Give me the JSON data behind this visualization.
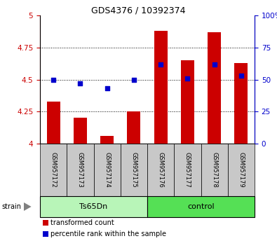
{
  "title": "GDS4376 / 10392374",
  "samples": [
    "GSM957172",
    "GSM957173",
    "GSM957174",
    "GSM957175",
    "GSM957176",
    "GSM957177",
    "GSM957178",
    "GSM957179"
  ],
  "red_values": [
    4.33,
    4.2,
    4.06,
    4.25,
    4.88,
    4.65,
    4.87,
    4.63
  ],
  "blue_values": [
    50,
    47,
    43,
    50,
    62,
    51,
    62,
    53
  ],
  "ylim_left": [
    4.0,
    5.0
  ],
  "ylim_right": [
    0,
    100
  ],
  "yticks_left": [
    4.0,
    4.25,
    4.5,
    4.75,
    5.0
  ],
  "yticks_right": [
    0,
    25,
    50,
    75,
    100
  ],
  "ytick_labels_left": [
    "4",
    "4.25",
    "4.5",
    "4.75",
    "5"
  ],
  "ytick_labels_right": [
    "0",
    "25",
    "50",
    "75",
    "100%"
  ],
  "grid_lines": [
    4.25,
    4.5,
    4.75
  ],
  "groups": [
    {
      "label": "Ts65Dn",
      "start": 0,
      "end": 4
    },
    {
      "label": "control",
      "start": 4,
      "end": 8
    }
  ],
  "group_colors": [
    "#b8f5b8",
    "#55e055"
  ],
  "strain_label": "strain",
  "legend_red": "transformed count",
  "legend_blue": "percentile rank within the sample",
  "bar_color": "#cc0000",
  "dot_color": "#0000cc",
  "bar_width": 0.5,
  "label_area_bg": "#c8c8c8",
  "left_tick_color": "#cc0000",
  "right_tick_color": "#0000cc",
  "title_fontsize": 9,
  "tick_fontsize": 7.5,
  "sample_fontsize": 6,
  "group_fontsize": 8,
  "legend_fontsize": 7
}
